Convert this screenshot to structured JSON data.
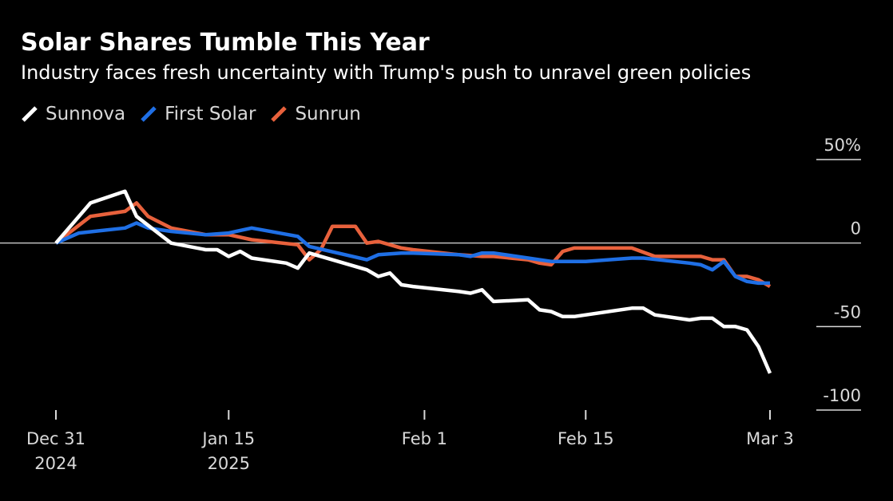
{
  "title": "Solar Shares Tumble This Year",
  "subtitle": "Industry faces fresh uncertainty with Trump's push to unravel green policies",
  "legend": [
    {
      "name": "Sunnova",
      "color": "#ffffff"
    },
    {
      "name": "First Solar",
      "color": "#1f6fe5"
    },
    {
      "name": "Sunrun",
      "color": "#e8613c"
    }
  ],
  "chart_data": {
    "type": "line",
    "title": "Solar Shares Tumble This Year",
    "xlabel": "",
    "ylabel": "",
    "ylim": [
      -100,
      50
    ],
    "xlim": [
      0,
      62
    ],
    "y_ticks": [
      {
        "value": 50,
        "label": "50%"
      },
      {
        "value": 0,
        "label": "0"
      },
      {
        "value": -50,
        "label": "-50"
      },
      {
        "value": -100,
        "label": "-100"
      }
    ],
    "x_ticks": [
      {
        "value": 0,
        "line1": "Dec 31",
        "line2": "2024"
      },
      {
        "value": 15,
        "line1": "Jan 15",
        "line2": "2025"
      },
      {
        "value": 32,
        "line1": "Feb 1",
        "line2": ""
      },
      {
        "value": 46,
        "line1": "Feb 15",
        "line2": ""
      },
      {
        "value": 62,
        "line1": "Mar 3",
        "line2": ""
      }
    ],
    "x_unit": "days since Dec 31, 2024",
    "series": [
      {
        "name": "Sunnova",
        "color": "#ffffff",
        "x": [
          0,
          3,
          6,
          7,
          10,
          13,
          14,
          15,
          16,
          17,
          20,
          21,
          22,
          27,
          28,
          29,
          30,
          31,
          35,
          36,
          37,
          38,
          41,
          42,
          43,
          44,
          45,
          50,
          51,
          52,
          55,
          56,
          57,
          58,
          59,
          60,
          61,
          62
        ],
        "values": [
          0,
          24,
          31,
          16,
          0,
          -4,
          -4,
          -8,
          -5,
          -9,
          -12,
          -15,
          -6,
          -16,
          -20,
          -18,
          -25,
          -26,
          -29,
          -30,
          -28,
          -35,
          -34,
          -40,
          -41,
          -44,
          -44,
          -39,
          -39,
          -43,
          -46,
          -45,
          -45,
          -50,
          -50,
          -52,
          -62,
          -78
        ]
      },
      {
        "name": "First Solar",
        "color": "#1f6fe5",
        "x": [
          0,
          2,
          6,
          7,
          8,
          10,
          13,
          15,
          17,
          21,
          22,
          27,
          28,
          30,
          31,
          35,
          36,
          37,
          38,
          41,
          42,
          43,
          44,
          46,
          48,
          50,
          51,
          55,
          56,
          57,
          58,
          59,
          60,
          61,
          62
        ],
        "values": [
          0,
          6,
          9,
          12,
          9,
          7,
          5,
          6,
          9,
          4,
          -2,
          -10,
          -7,
          -6,
          -6,
          -7,
          -8,
          -6,
          -6,
          -9,
          -10,
          -11,
          -11,
          -11,
          -10,
          -9,
          -9,
          -12,
          -13,
          -16,
          -11,
          -20,
          -23,
          -24,
          -24
        ]
      },
      {
        "name": "Sunrun",
        "color": "#e8613c",
        "x": [
          0,
          3,
          6,
          7,
          8,
          10,
          13,
          15,
          17,
          21,
          22,
          23,
          24,
          25,
          26,
          27,
          28,
          29,
          30,
          31,
          35,
          37,
          38,
          41,
          42,
          43,
          44,
          45,
          50,
          52,
          55,
          56,
          57,
          58,
          59,
          60,
          61,
          62
        ],
        "values": [
          0,
          16,
          19,
          24,
          16,
          9,
          5,
          5,
          2,
          -1,
          -10,
          -4,
          10,
          10,
          10,
          0,
          1,
          -1,
          -3,
          -4,
          -7,
          -8,
          -8,
          -10,
          -12,
          -13,
          -5,
          -3,
          -3,
          -8,
          -8,
          -8,
          -10,
          -10,
          -20,
          -20,
          -22,
          -26
        ]
      }
    ]
  }
}
